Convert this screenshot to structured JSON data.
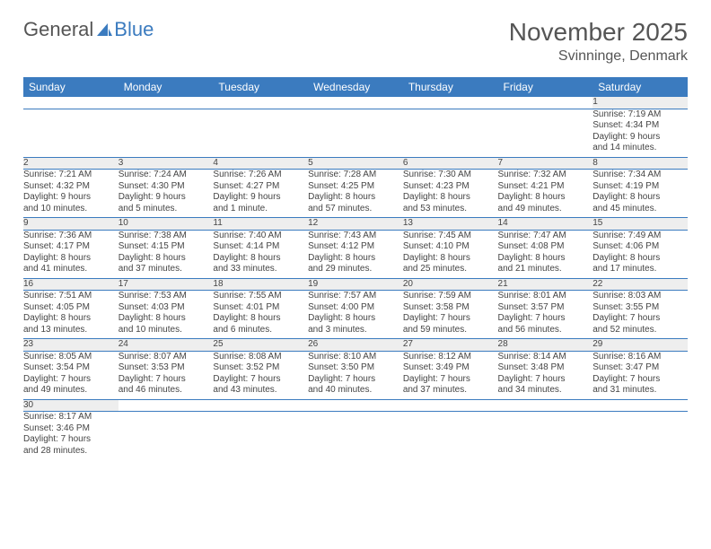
{
  "logo": {
    "text1": "General",
    "text2": "Blue"
  },
  "title": "November 2025",
  "location": "Svinninge, Denmark",
  "colors": {
    "header_bg": "#3b7bbf",
    "header_fg": "#ffffff",
    "daynum_bg": "#eeeeee",
    "rule": "#3b7bbf",
    "text": "#444444"
  },
  "weekdays": [
    "Sunday",
    "Monday",
    "Tuesday",
    "Wednesday",
    "Thursday",
    "Friday",
    "Saturday"
  ],
  "weeks": [
    [
      null,
      null,
      null,
      null,
      null,
      null,
      {
        "n": "1",
        "sr": "7:19 AM",
        "ss": "4:34 PM",
        "dl": "9 hours and 14 minutes."
      }
    ],
    [
      {
        "n": "2",
        "sr": "7:21 AM",
        "ss": "4:32 PM",
        "dl": "9 hours and 10 minutes."
      },
      {
        "n": "3",
        "sr": "7:24 AM",
        "ss": "4:30 PM",
        "dl": "9 hours and 5 minutes."
      },
      {
        "n": "4",
        "sr": "7:26 AM",
        "ss": "4:27 PM",
        "dl": "9 hours and 1 minute."
      },
      {
        "n": "5",
        "sr": "7:28 AM",
        "ss": "4:25 PM",
        "dl": "8 hours and 57 minutes."
      },
      {
        "n": "6",
        "sr": "7:30 AM",
        "ss": "4:23 PM",
        "dl": "8 hours and 53 minutes."
      },
      {
        "n": "7",
        "sr": "7:32 AM",
        "ss": "4:21 PM",
        "dl": "8 hours and 49 minutes."
      },
      {
        "n": "8",
        "sr": "7:34 AM",
        "ss": "4:19 PM",
        "dl": "8 hours and 45 minutes."
      }
    ],
    [
      {
        "n": "9",
        "sr": "7:36 AM",
        "ss": "4:17 PM",
        "dl": "8 hours and 41 minutes."
      },
      {
        "n": "10",
        "sr": "7:38 AM",
        "ss": "4:15 PM",
        "dl": "8 hours and 37 minutes."
      },
      {
        "n": "11",
        "sr": "7:40 AM",
        "ss": "4:14 PM",
        "dl": "8 hours and 33 minutes."
      },
      {
        "n": "12",
        "sr": "7:43 AM",
        "ss": "4:12 PM",
        "dl": "8 hours and 29 minutes."
      },
      {
        "n": "13",
        "sr": "7:45 AM",
        "ss": "4:10 PM",
        "dl": "8 hours and 25 minutes."
      },
      {
        "n": "14",
        "sr": "7:47 AM",
        "ss": "4:08 PM",
        "dl": "8 hours and 21 minutes."
      },
      {
        "n": "15",
        "sr": "7:49 AM",
        "ss": "4:06 PM",
        "dl": "8 hours and 17 minutes."
      }
    ],
    [
      {
        "n": "16",
        "sr": "7:51 AM",
        "ss": "4:05 PM",
        "dl": "8 hours and 13 minutes."
      },
      {
        "n": "17",
        "sr": "7:53 AM",
        "ss": "4:03 PM",
        "dl": "8 hours and 10 minutes."
      },
      {
        "n": "18",
        "sr": "7:55 AM",
        "ss": "4:01 PM",
        "dl": "8 hours and 6 minutes."
      },
      {
        "n": "19",
        "sr": "7:57 AM",
        "ss": "4:00 PM",
        "dl": "8 hours and 3 minutes."
      },
      {
        "n": "20",
        "sr": "7:59 AM",
        "ss": "3:58 PM",
        "dl": "7 hours and 59 minutes."
      },
      {
        "n": "21",
        "sr": "8:01 AM",
        "ss": "3:57 PM",
        "dl": "7 hours and 56 minutes."
      },
      {
        "n": "22",
        "sr": "8:03 AM",
        "ss": "3:55 PM",
        "dl": "7 hours and 52 minutes."
      }
    ],
    [
      {
        "n": "23",
        "sr": "8:05 AM",
        "ss": "3:54 PM",
        "dl": "7 hours and 49 minutes."
      },
      {
        "n": "24",
        "sr": "8:07 AM",
        "ss": "3:53 PM",
        "dl": "7 hours and 46 minutes."
      },
      {
        "n": "25",
        "sr": "8:08 AM",
        "ss": "3:52 PM",
        "dl": "7 hours and 43 minutes."
      },
      {
        "n": "26",
        "sr": "8:10 AM",
        "ss": "3:50 PM",
        "dl": "7 hours and 40 minutes."
      },
      {
        "n": "27",
        "sr": "8:12 AM",
        "ss": "3:49 PM",
        "dl": "7 hours and 37 minutes."
      },
      {
        "n": "28",
        "sr": "8:14 AM",
        "ss": "3:48 PM",
        "dl": "7 hours and 34 minutes."
      },
      {
        "n": "29",
        "sr": "8:16 AM",
        "ss": "3:47 PM",
        "dl": "7 hours and 31 minutes."
      }
    ],
    [
      {
        "n": "30",
        "sr": "8:17 AM",
        "ss": "3:46 PM",
        "dl": "7 hours and 28 minutes."
      },
      null,
      null,
      null,
      null,
      null,
      null
    ]
  ],
  "labels": {
    "sunrise": "Sunrise: ",
    "sunset": "Sunset: ",
    "daylight": "Daylight: "
  }
}
